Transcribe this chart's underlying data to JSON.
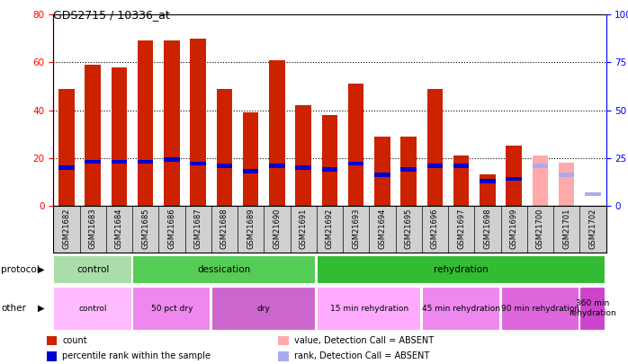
{
  "title": "GDS2715 / 10336_at",
  "samples": [
    "GSM21682",
    "GSM21683",
    "GSM21684",
    "GSM21685",
    "GSM21686",
    "GSM21687",
    "GSM21688",
    "GSM21689",
    "GSM21690",
    "GSM21691",
    "GSM21692",
    "GSM21693",
    "GSM21694",
    "GSM21695",
    "GSM21696",
    "GSM21697",
    "GSM21698",
    "GSM21699",
    "GSM21700",
    "GSM21701",
    "GSM21702"
  ],
  "red_values": [
    49,
    59,
    58,
    69,
    69,
    70,
    49,
    39,
    61,
    42,
    38,
    51,
    29,
    29,
    49,
    21,
    13,
    25,
    0,
    0,
    0
  ],
  "blue_values": [
    20,
    23,
    23,
    23,
    24,
    22,
    21,
    18,
    21,
    20,
    19,
    22,
    16,
    19,
    21,
    21,
    13,
    14,
    0,
    0,
    0
  ],
  "pink_values": [
    0,
    0,
    0,
    0,
    0,
    0,
    0,
    0,
    0,
    0,
    0,
    0,
    0,
    0,
    0,
    0,
    0,
    0,
    21,
    18,
    0
  ],
  "lightblue_values": [
    0,
    0,
    0,
    0,
    0,
    0,
    0,
    0,
    0,
    0,
    0,
    0,
    0,
    0,
    0,
    0,
    0,
    0,
    21,
    16,
    6
  ],
  "red_color": "#cc2200",
  "blue_color": "#0000cc",
  "pink_color": "#ffaaaa",
  "lightblue_color": "#aaaaee",
  "xtick_bg": "#d0d0d0",
  "ylim_left": [
    0,
    80
  ],
  "ylim_right": [
    0,
    100
  ],
  "yticks_left": [
    0,
    20,
    40,
    60,
    80
  ],
  "yticks_right": [
    0,
    25,
    50,
    75,
    100
  ],
  "protocol_groups": [
    {
      "label": "control",
      "start": 0,
      "end": 3,
      "color": "#aaddaa"
    },
    {
      "label": "dessication",
      "start": 3,
      "end": 10,
      "color": "#55cc55"
    },
    {
      "label": "rehydration",
      "start": 10,
      "end": 21,
      "color": "#33bb33"
    }
  ],
  "other_groups": [
    {
      "label": "control",
      "start": 0,
      "end": 3,
      "color": "#ffbbff"
    },
    {
      "label": "50 pct dry",
      "start": 3,
      "end": 6,
      "color": "#ee88ee"
    },
    {
      "label": "dry",
      "start": 6,
      "end": 10,
      "color": "#cc66cc"
    },
    {
      "label": "15 min rehydration",
      "start": 10,
      "end": 14,
      "color": "#ffaaff"
    },
    {
      "label": "45 min rehydration",
      "start": 14,
      "end": 17,
      "color": "#ee88ee"
    },
    {
      "label": "90 min rehydration",
      "start": 17,
      "end": 20,
      "color": "#dd66dd"
    },
    {
      "label": "360 min\nrehydration",
      "start": 20,
      "end": 21,
      "color": "#cc44cc"
    }
  ],
  "protocol_label": "protocol",
  "other_label": "other",
  "legend_items": [
    {
      "label": "count",
      "color": "#cc2200"
    },
    {
      "label": "percentile rank within the sample",
      "color": "#0000cc"
    },
    {
      "label": "value, Detection Call = ABSENT",
      "color": "#ffaaaa"
    },
    {
      "label": "rank, Detection Call = ABSENT",
      "color": "#aaaaee"
    }
  ]
}
